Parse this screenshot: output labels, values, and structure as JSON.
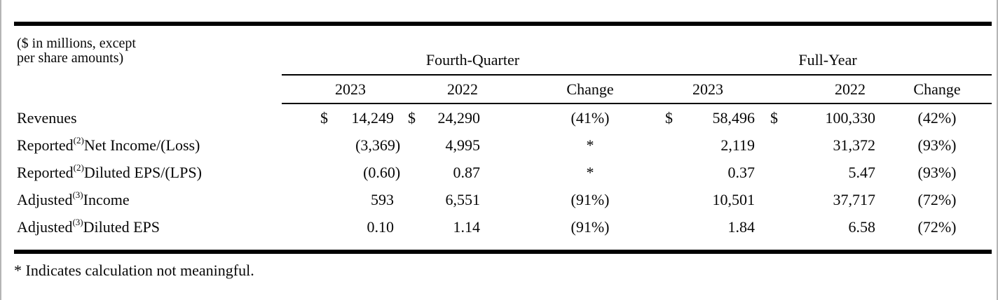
{
  "table": {
    "unit_note": [
      "($ in millions, except",
      "per share amounts)"
    ],
    "groups": [
      {
        "label": "Fourth-Quarter"
      },
      {
        "label": "Full-Year"
      }
    ],
    "year_headers": [
      "2023",
      "2022",
      "Change",
      "2023",
      "2022",
      "Change"
    ],
    "rows": [
      {
        "label": "Revenues",
        "sup": "",
        "suffix": "",
        "fq2023_sym": "$",
        "fq2023": "14,249",
        "fq2022_sym": "$",
        "fq2022": "24,290",
        "fq_change": "(41%)",
        "fy2023_sym": "$",
        "fy2023": "58,496",
        "fy2022_sym": "$",
        "fy2022": "100,330",
        "fy_change": "(42%)"
      },
      {
        "label": "Reported",
        "sup": "(2)",
        "suffix": " Net Income/(Loss)",
        "fq2023_sym": "",
        "fq2023": "(3,369)",
        "fq2022_sym": "",
        "fq2022": "4,995",
        "fq_change": "*",
        "fy2023_sym": "",
        "fy2023": "2,119",
        "fy2022_sym": "",
        "fy2022": "31,372",
        "fy_change": "(93%)"
      },
      {
        "label": "Reported",
        "sup": "(2)",
        "suffix": " Diluted EPS/(LPS)",
        "fq2023_sym": "",
        "fq2023": "(0.60)",
        "fq2022_sym": "",
        "fq2022": "0.87",
        "fq_change": "*",
        "fy2023_sym": "",
        "fy2023": "0.37",
        "fy2022_sym": "",
        "fy2022": "5.47",
        "fy_change": "(93%)"
      },
      {
        "label": "Adjusted",
        "sup": "(3)",
        "suffix": " Income",
        "fq2023_sym": "",
        "fq2023": "593",
        "fq2022_sym": "",
        "fq2022": "6,551",
        "fq_change": "(91%)",
        "fy2023_sym": "",
        "fy2023": "10,501",
        "fy2022_sym": "",
        "fy2022": "37,717",
        "fy_change": "(72%)"
      },
      {
        "label": "Adjusted",
        "sup": "(3)",
        "suffix": " Diluted EPS",
        "fq2023_sym": "",
        "fq2023": "0.10",
        "fq2022_sym": "",
        "fq2022": "1.14",
        "fq_change": "(91%)",
        "fy2023_sym": "",
        "fy2023": "1.84",
        "fy2022_sym": "",
        "fy2022": "6.58",
        "fy_change": "(72%)"
      }
    ],
    "footnote": "* Indicates calculation not meaningful."
  }
}
